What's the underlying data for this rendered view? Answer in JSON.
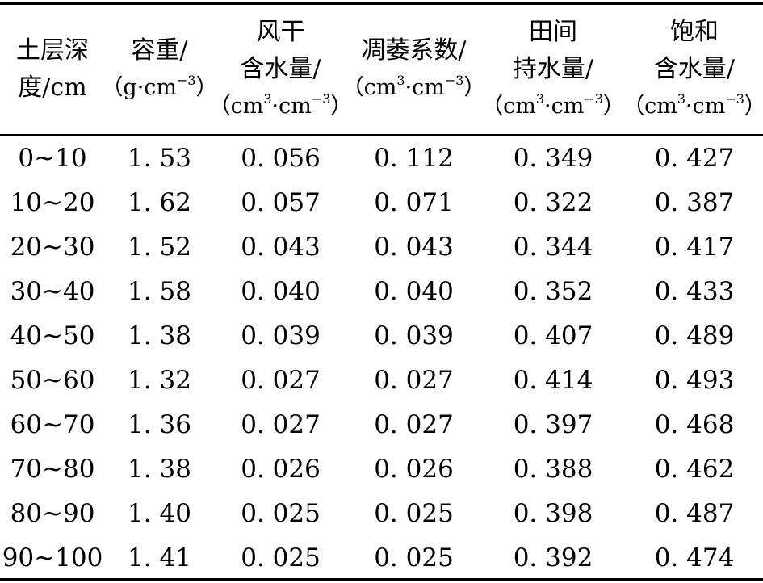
{
  "table": {
    "headers": [
      {
        "lines": [
          "土层深",
          "度/cm"
        ],
        "unit": null
      },
      {
        "lines": [
          "容重/"
        ],
        "unit": {
          "base": "（g·cm",
          "exp": "−3",
          "close": "）"
        }
      },
      {
        "lines": [
          "风干",
          "含水量/"
        ],
        "unit": {
          "pre": "（cm",
          "exp1": "3",
          "mid": "·cm",
          "exp2": "−3",
          "close": "）"
        }
      },
      {
        "lines": [
          "凋萎系数/"
        ],
        "unit": {
          "pre": "（cm",
          "exp1": "3",
          "mid": "·cm",
          "exp2": "−3",
          "close": "）"
        }
      },
      {
        "lines": [
          "田间",
          "持水量/"
        ],
        "unit": {
          "pre": "（cm",
          "exp1": "3",
          "mid": "·cm",
          "exp2": "−3",
          "close": "）"
        }
      },
      {
        "lines": [
          "饱和",
          "含水量/"
        ],
        "unit": {
          "pre": "（cm",
          "exp1": "3",
          "mid": "·cm",
          "exp2": "−3",
          "close": "）"
        }
      }
    ],
    "rows": [
      [
        "0~10",
        "1. 53",
        "0. 056",
        "0. 112",
        "0. 349",
        "0. 427"
      ],
      [
        "10~20",
        "1. 62",
        "0. 057",
        "0. 071",
        "0. 322",
        "0. 387"
      ],
      [
        "20~30",
        "1. 52",
        "0. 043",
        "0. 043",
        "0. 344",
        "0. 417"
      ],
      [
        "30~40",
        "1. 58",
        "0. 040",
        "0. 040",
        "0. 352",
        "0. 433"
      ],
      [
        "40~50",
        "1. 38",
        "0. 039",
        "0. 039",
        "0. 407",
        "0. 489"
      ],
      [
        "50~60",
        "1. 32",
        "0. 027",
        "0. 027",
        "0. 414",
        "0. 493"
      ],
      [
        "60~70",
        "1. 36",
        "0. 027",
        "0. 027",
        "0. 397",
        "0. 468"
      ],
      [
        "70~80",
        "1. 38",
        "0. 026",
        "0. 026",
        "0. 388",
        "0. 462"
      ],
      [
        "80~90",
        "1. 40",
        "0. 025",
        "0. 025",
        "0. 398",
        "0. 487"
      ],
      [
        "90~100",
        "1. 41",
        "0. 025",
        "0. 025",
        "0. 392",
        "0. 474"
      ]
    ]
  }
}
